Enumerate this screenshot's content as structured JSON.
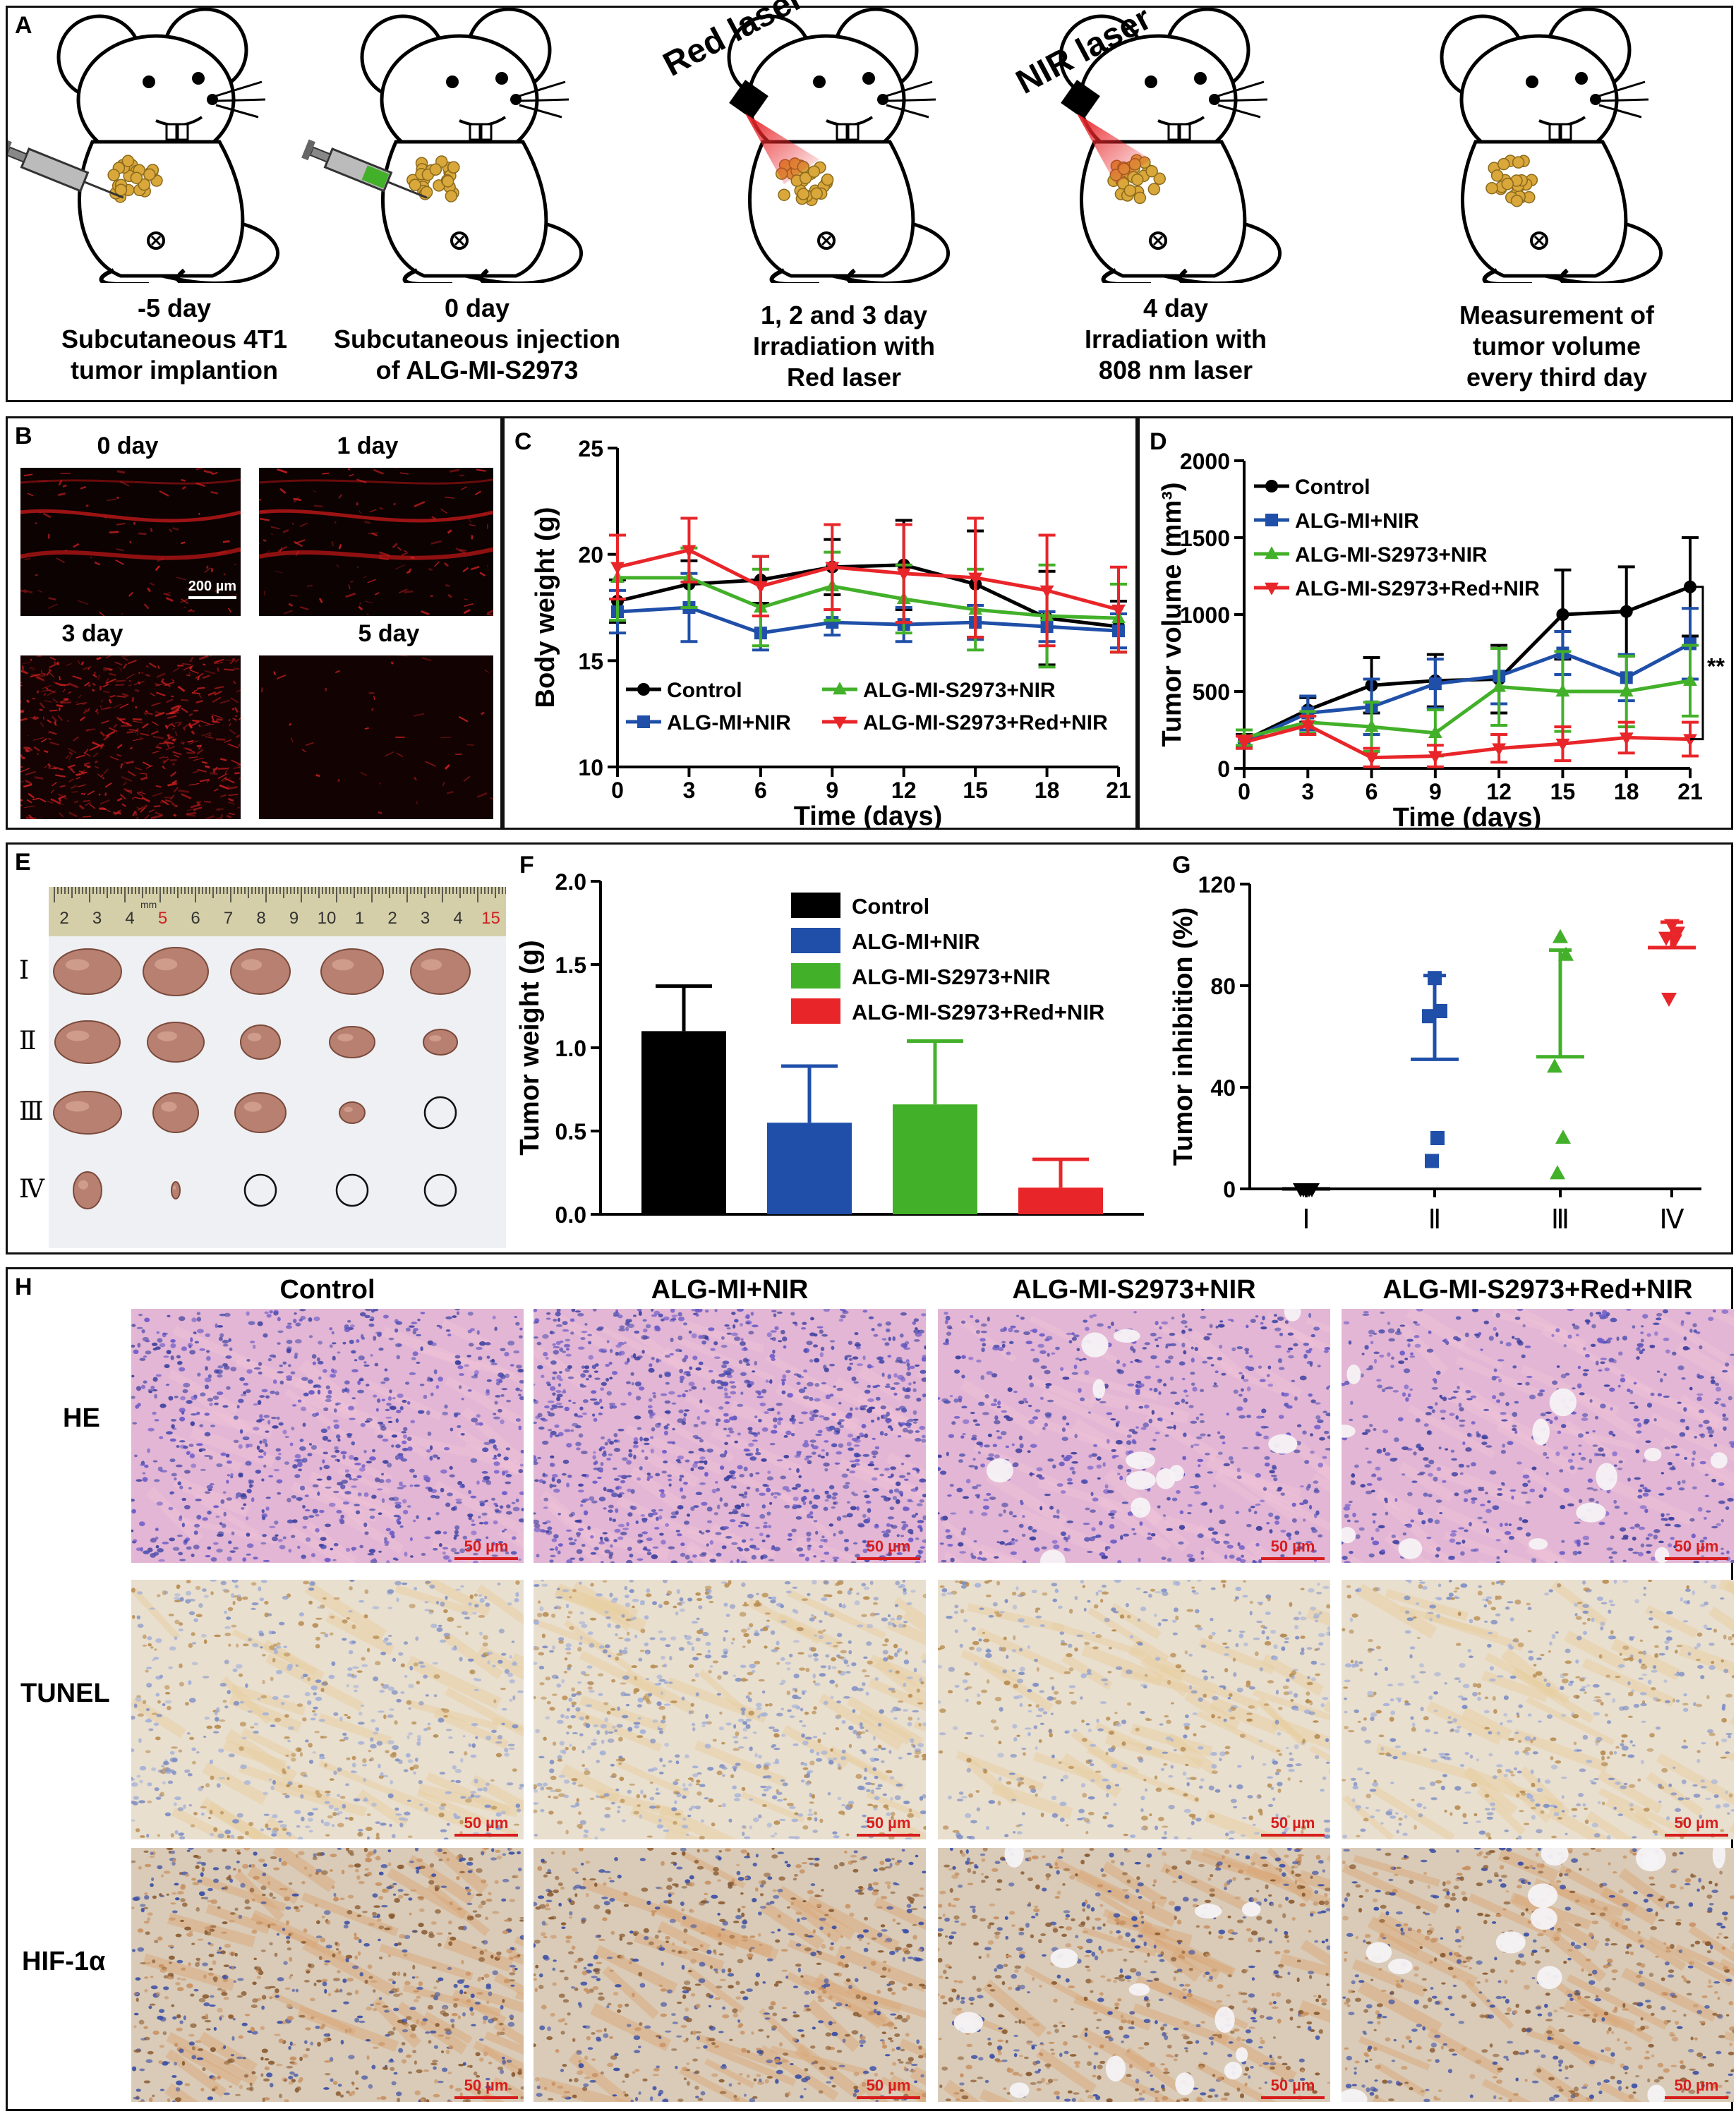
{
  "panels": {
    "A": {
      "label": "A",
      "laser_labels": [
        "Red laser",
        "NIR laser"
      ],
      "steps": [
        {
          "day": "-5 day",
          "lines": [
            "Subcutaneous 4T1",
            "tumor implantion"
          ]
        },
        {
          "day": "0 day",
          "lines": [
            "Subcutaneous injection",
            "of ALG-MI-S2973"
          ]
        },
        {
          "day": "",
          "lines": [
            "1, 2 and 3 day",
            "Irradiation with",
            "Red laser"
          ]
        },
        {
          "day": "4 day",
          "lines": [
            "Irradiation with",
            "808 nm laser"
          ]
        },
        {
          "day": "",
          "lines": [
            "Measurement of",
            "tumor volume",
            "every third day"
          ]
        }
      ]
    },
    "B": {
      "label": "B",
      "images": [
        "0 day",
        "1 day",
        "3 day",
        "5 day"
      ],
      "scale": "200 µm"
    },
    "E": {
      "label": "E",
      "ruler_numbers": [
        "2",
        "3",
        "4",
        "5",
        "6",
        "7",
        "8",
        "9",
        "10",
        "1",
        "2",
        "3",
        "4",
        "15"
      ],
      "ruler_unit": "mm",
      "row_labels": [
        "Ⅰ",
        "Ⅱ",
        "Ⅲ",
        "Ⅳ"
      ]
    },
    "H": {
      "label": "H",
      "columns": [
        "Control",
        "ALG-MI+NIR",
        "ALG-MI-S2973+NIR",
        "ALG-MI-S2973+Red+NIR"
      ],
      "rows": [
        "HE",
        "TUNEL",
        "HIF-1α"
      ],
      "scale": "50 µm"
    }
  },
  "colors": {
    "control": "#000000",
    "alg_mi_nir": "#1f4fa8",
    "alg_mi_s2973_nir": "#43b02a",
    "alg_mi_s2973_red_nir": "#e8262a"
  },
  "chart_data": [
    {
      "panel": "C",
      "type": "line",
      "xlabel": "Time (days)",
      "ylabel": "Body weight (g)",
      "x": [
        0,
        3,
        6,
        9,
        12,
        15,
        18,
        21
      ],
      "xticks": [
        0,
        3,
        6,
        9,
        12,
        15,
        18,
        21
      ],
      "yticks": [
        10,
        15,
        20,
        25
      ],
      "xlim": [
        0,
        21
      ],
      "ylim": [
        10,
        25
      ],
      "legend": "inside-bottom",
      "series": [
        {
          "name": "Control",
          "color": "#000000",
          "marker": "circle",
          "values": [
            17.8,
            18.6,
            18.8,
            19.4,
            19.5,
            18.6,
            17.0,
            16.6
          ],
          "err": [
            1.0,
            1.1,
            1.1,
            1.3,
            2.1,
            2.5,
            2.2,
            1.2
          ]
        },
        {
          "name": "ALG-MI+NIR",
          "color": "#1f4fa8",
          "marker": "square",
          "values": [
            17.3,
            17.5,
            16.3,
            16.8,
            16.7,
            16.8,
            16.6,
            16.4
          ],
          "err": [
            1.0,
            1.6,
            0.8,
            0.6,
            0.8,
            0.8,
            0.7,
            0.8
          ]
        },
        {
          "name": "ALG-MI-S2973+NIR",
          "color": "#43b02a",
          "marker": "triangle",
          "values": [
            18.9,
            18.9,
            17.5,
            18.5,
            17.9,
            17.4,
            17.1,
            17.0
          ],
          "err": [
            2.0,
            1.4,
            1.8,
            1.6,
            1.6,
            1.9,
            2.4,
            1.6
          ]
        },
        {
          "name": "ALG-MI-S2973+Red+NIR",
          "color": "#e8262a",
          "marker": "triangle-down",
          "values": [
            19.4,
            20.2,
            18.5,
            19.4,
            19.1,
            18.9,
            18.3,
            17.4
          ],
          "err": [
            1.5,
            1.5,
            1.4,
            2.0,
            2.3,
            2.8,
            2.6,
            2.0
          ]
        }
      ]
    },
    {
      "panel": "D",
      "type": "line",
      "xlabel": "Time (days)",
      "ylabel": "Tumor volume (mm³)",
      "x": [
        0,
        3,
        6,
        9,
        12,
        15,
        18,
        21
      ],
      "xticks": [
        0,
        3,
        6,
        9,
        12,
        15,
        18,
        21
      ],
      "yticks": [
        0,
        500,
        1000,
        1500,
        2000
      ],
      "xlim": [
        0,
        21
      ],
      "ylim": [
        0,
        2000
      ],
      "legend": "top-left",
      "annotation": "**",
      "series": [
        {
          "name": "Control",
          "color": "#000000",
          "marker": "circle",
          "values": [
            180,
            380,
            540,
            570,
            580,
            1000,
            1020,
            1180
          ],
          "err": [
            40,
            80,
            180,
            170,
            220,
            290,
            290,
            320
          ]
        },
        {
          "name": "ALG-MI+NIR",
          "color": "#1f4fa8",
          "marker": "square",
          "values": [
            170,
            360,
            400,
            550,
            600,
            750,
            590,
            810
          ],
          "err": [
            40,
            110,
            180,
            160,
            180,
            140,
            150,
            230
          ]
        },
        {
          "name": "ALG-MI-S2973+NIR",
          "color": "#43b02a",
          "marker": "triangle",
          "values": [
            200,
            300,
            270,
            230,
            530,
            500,
            500,
            570
          ],
          "err": [
            50,
            70,
            160,
            150,
            250,
            260,
            230,
            230
          ]
        },
        {
          "name": "ALG-MI-S2973+Red+NIR",
          "color": "#e8262a",
          "marker": "triangle-down",
          "values": [
            170,
            280,
            70,
            80,
            130,
            160,
            200,
            190
          ],
          "err": [
            40,
            60,
            60,
            70,
            90,
            110,
            100,
            110
          ]
        }
      ]
    },
    {
      "panel": "F",
      "type": "bar",
      "ylabel": "Tumor weight (g)",
      "categories": [
        "Control",
        "ALG-MI+NIR",
        "ALG-MI-S2973+NIR",
        "ALG-MI-S2973+Red+NIR"
      ],
      "values": [
        1.1,
        0.55,
        0.66,
        0.16
      ],
      "err": [
        0.27,
        0.34,
        0.38,
        0.17
      ],
      "colors": [
        "#000000",
        "#1f4fa8",
        "#43b02a",
        "#e8262a"
      ],
      "yticks": [
        0.0,
        0.5,
        1.0,
        1.5,
        2.0
      ],
      "ylim": [
        0,
        2.0
      ],
      "legend": "top-right"
    },
    {
      "panel": "G",
      "type": "scatter",
      "ylabel": "Tumor inhibition (%)",
      "categories": [
        "Ⅰ",
        "Ⅱ",
        "Ⅲ",
        "Ⅳ"
      ],
      "yticks": [
        0,
        40,
        80,
        120
      ],
      "ylim": [
        0,
        120
      ],
      "groups": [
        {
          "color": "#000000",
          "marker": "triangle-down",
          "points": [
            0,
            0,
            0,
            0,
            0
          ],
          "mean": 0,
          "sd": 0
        },
        {
          "color": "#1f4fa8",
          "marker": "square",
          "points": [
            83,
            70,
            68,
            20,
            11
          ],
          "mean": 51,
          "sd": 33
        },
        {
          "color": "#43b02a",
          "marker": "triangle",
          "points": [
            99,
            92,
            48,
            20,
            6
          ],
          "mean": 52,
          "sd": 42
        },
        {
          "color": "#e8262a",
          "marker": "triangle-down",
          "points": [
            104,
            101,
            99,
            98,
            75
          ],
          "mean": 95,
          "sd": 10
        }
      ]
    }
  ]
}
